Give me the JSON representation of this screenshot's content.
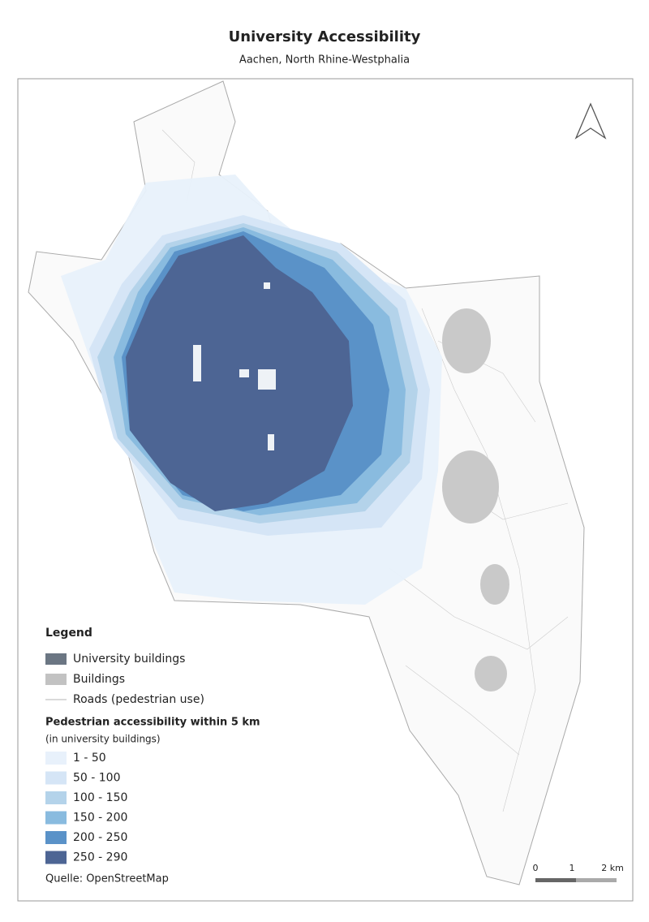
{
  "header": {
    "title": "University Accessibility",
    "subtitle": "Aachen,  North Rhine-Westphalia"
  },
  "legend": {
    "title": "Legend",
    "layers": [
      {
        "label": "University buildings",
        "color": "#6b7683",
        "symbol": "fill"
      },
      {
        "label": "Buildings",
        "color": "#c2c2c2",
        "symbol": "fill"
      },
      {
        "label": "Roads (pedestrian use)",
        "color": "#b5b5b5",
        "symbol": "line"
      }
    ],
    "accessibility_title": "Pedestrian accessibility within 5 km",
    "accessibility_subtitle": "(in university buildings)",
    "classes": [
      {
        "label": "1 - 50",
        "color": "#e8f1fb"
      },
      {
        "label": "50 - 100",
        "color": "#d5e5f6"
      },
      {
        "label": "100 - 150",
        "color": "#b4d3ea"
      },
      {
        "label": "150 - 200",
        "color": "#89bbdf"
      },
      {
        "label": "200 - 250",
        "color": "#5a92c8"
      },
      {
        "label": "250 - 290",
        "color": "#4d6594"
      }
    ]
  },
  "source": "Quelle: OpenStreetMap",
  "scale_bar": {
    "labels": [
      "0",
      "1",
      "2 km"
    ]
  }
}
